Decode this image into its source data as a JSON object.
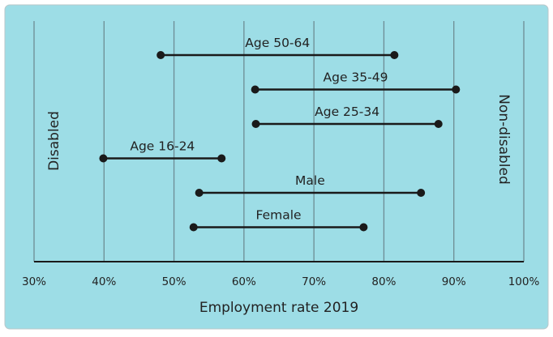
{
  "chart_data": {
    "type": "dumbbell",
    "xlabel": "Employment rate 2019",
    "xlim": [
      30,
      100
    ],
    "x_ticks": [
      {
        "value": 30,
        "label": "30%"
      },
      {
        "value": 40,
        "label": "40%"
      },
      {
        "value": 50,
        "label": "50%"
      },
      {
        "value": 60,
        "label": "60%"
      },
      {
        "value": 70,
        "label": "70%"
      },
      {
        "value": 80,
        "label": "80%"
      },
      {
        "value": 90,
        "label": "90%"
      },
      {
        "value": 100,
        "label": "100%"
      }
    ],
    "grid": "vertical",
    "left_side_label": "Disabled",
    "right_side_label": "Non-disabled",
    "series_point_names": [
      "Disabled",
      "Non-disabled"
    ],
    "rows": [
      {
        "label": "Age 50-64",
        "disabled": 48.1,
        "non_disabled": 81.5
      },
      {
        "label": "Age 35-49",
        "disabled": 61.6,
        "non_disabled": 90.3
      },
      {
        "label": "Age 25-34",
        "disabled": 61.7,
        "non_disabled": 87.8
      },
      {
        "label": "Age 16-24",
        "disabled": 39.9,
        "non_disabled": 56.8
      },
      {
        "label": "Male",
        "disabled": 53.6,
        "non_disabled": 85.3
      },
      {
        "label": "Female",
        "disabled": 52.8,
        "non_disabled": 77.1
      }
    ],
    "colors": {
      "panel_background": "#9ddde6",
      "panel_border": "#b9c7ca",
      "gridline": "#6d8c93",
      "axis": "#1a1a1a",
      "dumbbell": "#1a1a1a",
      "text": "#222222"
    }
  }
}
